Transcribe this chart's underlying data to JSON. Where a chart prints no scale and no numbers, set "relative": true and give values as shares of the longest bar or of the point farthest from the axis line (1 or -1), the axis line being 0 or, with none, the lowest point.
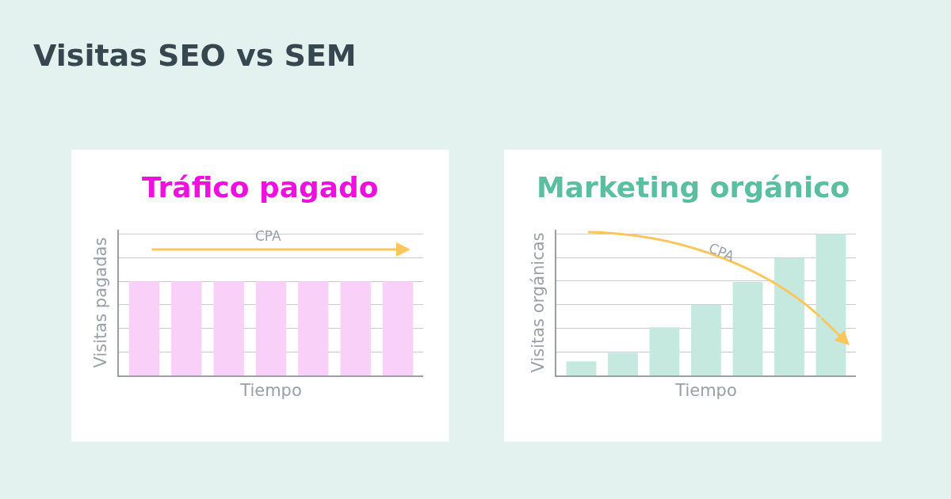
{
  "chart_data": [
    {
      "type": "bar",
      "title": "Tráfico pagado",
      "xlabel": "Tiempo",
      "ylabel": "Visitas pagadas",
      "relative": true,
      "grid": "y",
      "annotations": [
        "Visitas SEO vs SEM",
        "CPA"
      ],
      "categories": [
        null,
        null,
        null,
        null,
        null,
        null,
        null
      ],
      "series": [
        {
          "color": "#f9d0f7",
          "values": [
            1,
            1,
            1,
            1,
            1,
            1,
            1
          ]
        }
      ]
    },
    {
      "type": "bar",
      "title": "Marketing orgánico",
      "xlabel": "Tiempo",
      "ylabel": "Visitas orgánicas",
      "relative": true,
      "grid": "y",
      "annotations": [
        "CPA"
      ],
      "categories": [
        null,
        null,
        null,
        null,
        null,
        null,
        null
      ],
      "series": [
        {
          "color": "#c5e8df",
          "values": [
            0.1,
            0.16,
            0.34,
            0.5,
            0.66,
            0.83,
            1
          ]
        }
      ]
    }
  ]
}
